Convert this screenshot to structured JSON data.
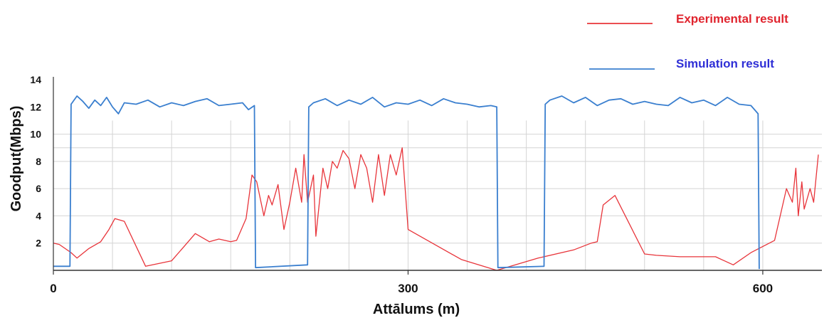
{
  "chart_data": {
    "type": "line",
    "xlabel": "Attālums (m)",
    "ylabel": "Goodput(Mbps)",
    "xlim": [
      0,
      650
    ],
    "ylim": [
      0,
      14
    ],
    "x_ticks": [
      "0",
      "300",
      "600"
    ],
    "y_ticks": [
      "2",
      "4",
      "6",
      "8",
      "10",
      "12",
      "14"
    ],
    "grid": true,
    "legend": "top-right",
    "series": [
      {
        "name": "Experimental result",
        "color": "#e8343a",
        "x": [
          0,
          5,
          15,
          20,
          30,
          40,
          47,
          52,
          60,
          78,
          100,
          120,
          132,
          140,
          150,
          155,
          163,
          168,
          172,
          178,
          182,
          185,
          190,
          195,
          200,
          205,
          210,
          212,
          215,
          220,
          222,
          228,
          232,
          236,
          240,
          245,
          250,
          255,
          260,
          265,
          270,
          275,
          280,
          285,
          290,
          295,
          300,
          345,
          375,
          410,
          440,
          455,
          460,
          465,
          475,
          500,
          510,
          530,
          560,
          575,
          590,
          610,
          620,
          625,
          628,
          630,
          633,
          635,
          640,
          643,
          647
        ],
        "y": [
          2.0,
          1.9,
          1.3,
          0.9,
          1.6,
          2.1,
          3.0,
          3.8,
          3.6,
          0.3,
          0.7,
          2.7,
          2.1,
          2.3,
          2.1,
          2.2,
          3.8,
          7.0,
          6.5,
          4.0,
          5.5,
          4.8,
          6.3,
          3.0,
          5.0,
          7.5,
          5.0,
          8.5,
          5.0,
          7.0,
          2.5,
          7.5,
          6.0,
          8.0,
          7.5,
          8.8,
          8.2,
          6.0,
          8.5,
          7.5,
          5.0,
          8.5,
          5.5,
          8.5,
          7.0,
          9.0,
          3.0,
          0.8,
          0.0,
          0.9,
          1.5,
          2.0,
          2.1,
          4.8,
          5.5,
          1.2,
          1.1,
          1.0,
          1.0,
          0.4,
          1.3,
          2.2,
          6.0,
          5.0,
          7.5,
          4.0,
          6.5,
          4.5,
          6.0,
          5.0,
          8.5
        ]
      },
      {
        "name": "Simulation result",
        "color": "#3a7fcf",
        "x": [
          0,
          14,
          15,
          20,
          25,
          30,
          35,
          40,
          45,
          50,
          55,
          60,
          70,
          80,
          90,
          100,
          110,
          120,
          130,
          140,
          150,
          160,
          165,
          170,
          171,
          215,
          216,
          220,
          230,
          240,
          250,
          260,
          270,
          280,
          290,
          300,
          310,
          320,
          330,
          340,
          350,
          360,
          370,
          375,
          376,
          415,
          416,
          420,
          430,
          440,
          450,
          460,
          470,
          480,
          490,
          500,
          510,
          520,
          530,
          540,
          550,
          560,
          570,
          580,
          590,
          596,
          597
        ],
        "y": [
          0.3,
          0.3,
          12.2,
          12.8,
          12.4,
          11.9,
          12.5,
          12.1,
          12.7,
          12.0,
          11.5,
          12.3,
          12.2,
          12.5,
          12.0,
          12.3,
          12.1,
          12.4,
          12.6,
          12.1,
          12.2,
          12.3,
          11.8,
          12.1,
          0.2,
          0.4,
          12.0,
          12.3,
          12.6,
          12.1,
          12.5,
          12.2,
          12.7,
          12.0,
          12.3,
          12.2,
          12.5,
          12.1,
          12.6,
          12.3,
          12.2,
          12.0,
          12.1,
          12.0,
          0.2,
          0.3,
          12.2,
          12.5,
          12.8,
          12.3,
          12.7,
          12.1,
          12.5,
          12.6,
          12.2,
          12.4,
          12.2,
          12.1,
          12.7,
          12.3,
          12.5,
          12.1,
          12.7,
          12.2,
          12.1,
          11.5,
          0.1
        ]
      }
    ]
  }
}
